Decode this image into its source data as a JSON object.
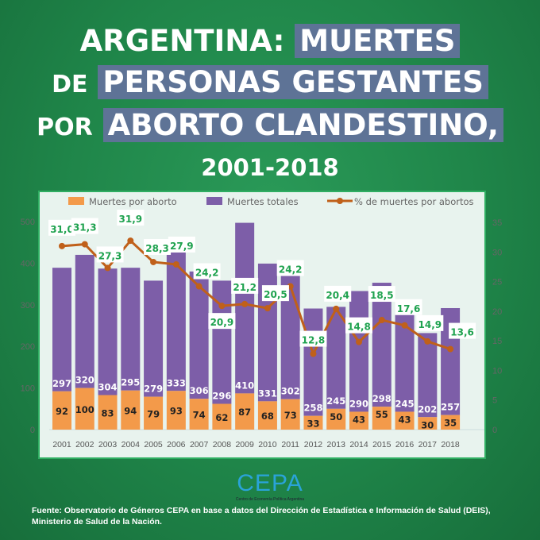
{
  "title": {
    "line1_plain": "ARGENTINA:",
    "line1_hl": "MUERTES",
    "line2_plain": "DE",
    "line2_hl": "PERSONAS GESTANTES",
    "line3_plain": "POR",
    "line3_hl": "ABORTO CLANDESTINO,",
    "line4": "2001-2018"
  },
  "logo": {
    "text": "CEPA",
    "subtitle": "Centro de Economía Política Argentina"
  },
  "source": {
    "line1": "Fuente: Observatorio de Géneros CEPA en base a datos del Dirección de Estadística e Información de Salud (DEIS),",
    "line2": "Ministerio de Salud de la Nación."
  },
  "chart_data": {
    "type": "bar",
    "stacked": true,
    "categories": [
      "2001",
      "2002",
      "2003",
      "2004",
      "2005",
      "2006",
      "2007",
      "2008",
      "2009",
      "2010",
      "2011",
      "2012",
      "2013",
      "2014",
      "2015",
      "2016",
      "2017",
      "2018"
    ],
    "series": [
      {
        "name": "Muertes por aborto",
        "type": "bar",
        "axis": "left",
        "color": "#f39a4a",
        "values": [
          92,
          100,
          83,
          94,
          79,
          93,
          74,
          62,
          87,
          68,
          73,
          33,
          50,
          43,
          55,
          43,
          30,
          35
        ]
      },
      {
        "name": "Muertes totales",
        "type": "bar",
        "axis": "left",
        "color": "#7d5ea8",
        "values": [
          297,
          320,
          304,
          295,
          279,
          333,
          306,
          296,
          410,
          331,
          302,
          258,
          245,
          290,
          298,
          245,
          202,
          257
        ]
      },
      {
        "name": "% de muertes por abortos",
        "type": "line",
        "axis": "right",
        "color": "#c0601a",
        "values": [
          31.0,
          31.3,
          27.3,
          31.9,
          28.3,
          27.9,
          24.2,
          20.9,
          21.2,
          20.5,
          24.2,
          12.8,
          20.4,
          14.8,
          18.5,
          17.6,
          14.9,
          13.6
        ],
        "labels": [
          "31,0",
          "31,3",
          "27,3",
          "31,9",
          "28,3",
          "27,9",
          "24,2",
          "20,9",
          "21,2",
          "20,5",
          "24,2",
          "12,8",
          "20,4",
          "14,8",
          "18,5",
          "17,6",
          "14,9",
          "13,6"
        ]
      }
    ],
    "y_left": {
      "range": [
        0,
        500
      ],
      "ticks": [
        "0",
        "100",
        "200",
        "300",
        "400",
        "500"
      ]
    },
    "y_right": {
      "range": [
        0,
        35
      ],
      "ticks": [
        "0",
        "5",
        "10",
        "15",
        "20",
        "25",
        "30",
        "35"
      ]
    },
    "legend_position": "top",
    "grid": false,
    "label_color": "#1fa24f"
  }
}
